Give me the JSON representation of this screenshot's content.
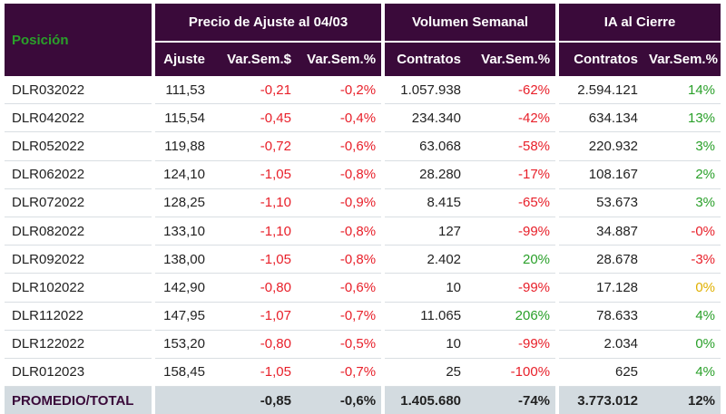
{
  "header": {
    "position": "Posición",
    "groups": [
      "Precio de Ajuste al 04/03",
      "Volumen Semanal",
      "IA al Cierre"
    ],
    "subcolumns": [
      "Ajuste",
      "Var.Sem.$",
      "Var.Sem.%",
      "Contratos",
      "Var.Sem.%",
      "Contratos",
      "Var.Sem.%"
    ]
  },
  "rows": [
    {
      "name": "DLR032022",
      "cells": [
        {
          "v": "111,53",
          "c": ""
        },
        {
          "v": "-0,21",
          "c": "neg"
        },
        {
          "v": "-0,2%",
          "c": "neg"
        },
        {
          "v": "1.057.938",
          "c": ""
        },
        {
          "v": "-62%",
          "c": "neg"
        },
        {
          "v": "2.594.121",
          "c": ""
        },
        {
          "v": "14%",
          "c": "pos"
        }
      ]
    },
    {
      "name": "DLR042022",
      "cells": [
        {
          "v": "115,54",
          "c": ""
        },
        {
          "v": "-0,45",
          "c": "neg"
        },
        {
          "v": "-0,4%",
          "c": "neg"
        },
        {
          "v": "234.340",
          "c": ""
        },
        {
          "v": "-42%",
          "c": "neg"
        },
        {
          "v": "634.134",
          "c": ""
        },
        {
          "v": "13%",
          "c": "pos"
        }
      ]
    },
    {
      "name": "DLR052022",
      "cells": [
        {
          "v": "119,88",
          "c": ""
        },
        {
          "v": "-0,72",
          "c": "neg"
        },
        {
          "v": "-0,6%",
          "c": "neg"
        },
        {
          "v": "63.068",
          "c": ""
        },
        {
          "v": "-58%",
          "c": "neg"
        },
        {
          "v": "220.932",
          "c": ""
        },
        {
          "v": "3%",
          "c": "pos"
        }
      ]
    },
    {
      "name": "DLR062022",
      "cells": [
        {
          "v": "124,10",
          "c": ""
        },
        {
          "v": "-1,05",
          "c": "neg"
        },
        {
          "v": "-0,8%",
          "c": "neg"
        },
        {
          "v": "28.280",
          "c": ""
        },
        {
          "v": "-17%",
          "c": "neg"
        },
        {
          "v": "108.167",
          "c": ""
        },
        {
          "v": "2%",
          "c": "pos"
        }
      ]
    },
    {
      "name": "DLR072022",
      "cells": [
        {
          "v": "128,25",
          "c": ""
        },
        {
          "v": "-1,10",
          "c": "neg"
        },
        {
          "v": "-0,9%",
          "c": "neg"
        },
        {
          "v": "8.415",
          "c": ""
        },
        {
          "v": "-65%",
          "c": "neg"
        },
        {
          "v": "53.673",
          "c": ""
        },
        {
          "v": "3%",
          "c": "pos"
        }
      ]
    },
    {
      "name": "DLR082022",
      "cells": [
        {
          "v": "133,10",
          "c": ""
        },
        {
          "v": "-1,10",
          "c": "neg"
        },
        {
          "v": "-0,8%",
          "c": "neg"
        },
        {
          "v": "127",
          "c": ""
        },
        {
          "v": "-99%",
          "c": "neg"
        },
        {
          "v": "34.887",
          "c": ""
        },
        {
          "v": "-0%",
          "c": "neg"
        }
      ]
    },
    {
      "name": "DLR092022",
      "cells": [
        {
          "v": "138,00",
          "c": ""
        },
        {
          "v": "-1,05",
          "c": "neg"
        },
        {
          "v": "-0,8%",
          "c": "neg"
        },
        {
          "v": "2.402",
          "c": ""
        },
        {
          "v": "20%",
          "c": "pos"
        },
        {
          "v": "28.678",
          "c": ""
        },
        {
          "v": "-3%",
          "c": "neg"
        }
      ]
    },
    {
      "name": "DLR102022",
      "cells": [
        {
          "v": "142,90",
          "c": ""
        },
        {
          "v": "-0,80",
          "c": "neg"
        },
        {
          "v": "-0,6%",
          "c": "neg"
        },
        {
          "v": "10",
          "c": ""
        },
        {
          "v": "-99%",
          "c": "neg"
        },
        {
          "v": "17.128",
          "c": ""
        },
        {
          "v": "0%",
          "c": "neu"
        }
      ]
    },
    {
      "name": "DLR112022",
      "cells": [
        {
          "v": "147,95",
          "c": ""
        },
        {
          "v": "-1,07",
          "c": "neg"
        },
        {
          "v": "-0,7%",
          "c": "neg"
        },
        {
          "v": "11.065",
          "c": ""
        },
        {
          "v": "206%",
          "c": "pos"
        },
        {
          "v": "78.633",
          "c": ""
        },
        {
          "v": "4%",
          "c": "pos"
        }
      ]
    },
    {
      "name": "DLR122022",
      "cells": [
        {
          "v": "153,20",
          "c": ""
        },
        {
          "v": "-0,80",
          "c": "neg"
        },
        {
          "v": "-0,5%",
          "c": "neg"
        },
        {
          "v": "10",
          "c": ""
        },
        {
          "v": "-99%",
          "c": "neg"
        },
        {
          "v": "2.034",
          "c": ""
        },
        {
          "v": "0%",
          "c": "pos"
        }
      ]
    },
    {
      "name": "DLR012023",
      "cells": [
        {
          "v": "158,45",
          "c": ""
        },
        {
          "v": "-1,05",
          "c": "neg"
        },
        {
          "v": "-0,7%",
          "c": "neg"
        },
        {
          "v": "25",
          "c": ""
        },
        {
          "v": "-100%",
          "c": "neg"
        },
        {
          "v": "625",
          "c": ""
        },
        {
          "v": "4%",
          "c": "pos"
        }
      ]
    }
  ],
  "total": {
    "name": "PROMEDIO/TOTAL",
    "cells": [
      {
        "v": "",
        "c": ""
      },
      {
        "v": "-0,85",
        "c": "neg"
      },
      {
        "v": "-0,6%",
        "c": "neg"
      },
      {
        "v": "1.405.680",
        "c": ""
      },
      {
        "v": "-74%",
        "c": "neg"
      },
      {
        "v": "3.773.012",
        "c": ""
      },
      {
        "v": "12%",
        "c": "pos"
      }
    ]
  },
  "colors": {
    "header_bg": "#3a0a3a",
    "total_bg": "#d3dbe0",
    "negative": "#e8202a",
    "positive": "#2aa02a",
    "neutral": "#e0b000"
  }
}
